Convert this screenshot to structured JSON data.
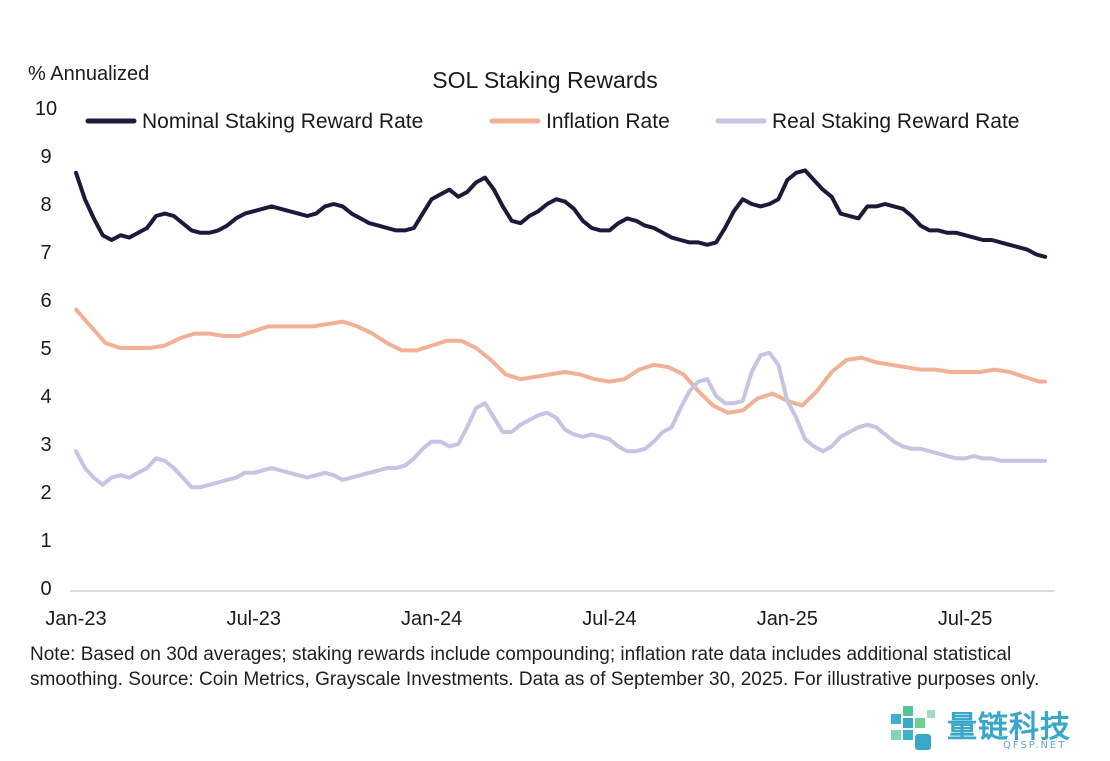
{
  "chart_data": {
    "type": "line",
    "title": "SOL Staking Rewards",
    "ylabel": "% Annualized",
    "xlabel": "",
    "ylim": [
      0,
      10
    ],
    "yticks": [
      "0",
      "1",
      "2",
      "3",
      "4",
      "5",
      "6",
      "7",
      "8",
      "9",
      "10"
    ],
    "xticks": [
      {
        "label": "Jan-23",
        "m": 0
      },
      {
        "label": "Jul-23",
        "m": 6
      },
      {
        "label": "Jan-24",
        "m": 12
      },
      {
        "label": "Jul-24",
        "m": 18
      },
      {
        "label": "Jan-25",
        "m": 24
      },
      {
        "label": "Jul-25",
        "m": 30
      }
    ],
    "x_range_months": [
      0,
      33
    ],
    "grid": false,
    "legend": "top",
    "series": [
      {
        "name": "Nominal Staking Reward Rate",
        "color": "#1b1a3b",
        "points": [
          [
            0.0,
            8.65
          ],
          [
            0.3,
            8.1
          ],
          [
            0.6,
            7.7
          ],
          [
            0.9,
            7.35
          ],
          [
            1.2,
            7.25
          ],
          [
            1.5,
            7.35
          ],
          [
            1.8,
            7.3
          ],
          [
            2.1,
            7.4
          ],
          [
            2.4,
            7.5
          ],
          [
            2.7,
            7.75
          ],
          [
            3.0,
            7.8
          ],
          [
            3.3,
            7.75
          ],
          [
            3.6,
            7.6
          ],
          [
            3.9,
            7.45
          ],
          [
            4.2,
            7.4
          ],
          [
            4.5,
            7.4
          ],
          [
            4.8,
            7.45
          ],
          [
            5.1,
            7.55
          ],
          [
            5.4,
            7.7
          ],
          [
            5.7,
            7.8
          ],
          [
            6.0,
            7.85
          ],
          [
            6.3,
            7.9
          ],
          [
            6.6,
            7.95
          ],
          [
            6.9,
            7.9
          ],
          [
            7.2,
            7.85
          ],
          [
            7.5,
            7.8
          ],
          [
            7.8,
            7.75
          ],
          [
            8.1,
            7.8
          ],
          [
            8.4,
            7.95
          ],
          [
            8.7,
            8.0
          ],
          [
            9.0,
            7.95
          ],
          [
            9.3,
            7.8
          ],
          [
            9.6,
            7.7
          ],
          [
            9.9,
            7.6
          ],
          [
            10.2,
            7.55
          ],
          [
            10.5,
            7.5
          ],
          [
            10.8,
            7.45
          ],
          [
            11.1,
            7.45
          ],
          [
            11.4,
            7.5
          ],
          [
            11.7,
            7.8
          ],
          [
            12.0,
            8.1
          ],
          [
            12.3,
            8.2
          ],
          [
            12.6,
            8.3
          ],
          [
            12.9,
            8.15
          ],
          [
            13.2,
            8.25
          ],
          [
            13.5,
            8.45
          ],
          [
            13.8,
            8.55
          ],
          [
            14.1,
            8.3
          ],
          [
            14.4,
            7.95
          ],
          [
            14.7,
            7.65
          ],
          [
            15.0,
            7.6
          ],
          [
            15.3,
            7.75
          ],
          [
            15.6,
            7.85
          ],
          [
            15.9,
            8.0
          ],
          [
            16.2,
            8.1
          ],
          [
            16.5,
            8.05
          ],
          [
            16.8,
            7.9
          ],
          [
            17.1,
            7.65
          ],
          [
            17.4,
            7.5
          ],
          [
            17.7,
            7.45
          ],
          [
            18.0,
            7.45
          ],
          [
            18.3,
            7.6
          ],
          [
            18.6,
            7.7
          ],
          [
            18.9,
            7.65
          ],
          [
            19.2,
            7.55
          ],
          [
            19.5,
            7.5
          ],
          [
            19.8,
            7.4
          ],
          [
            20.1,
            7.3
          ],
          [
            20.4,
            7.25
          ],
          [
            20.7,
            7.2
          ],
          [
            21.0,
            7.2
          ],
          [
            21.3,
            7.15
          ],
          [
            21.6,
            7.2
          ],
          [
            21.9,
            7.5
          ],
          [
            22.2,
            7.85
          ],
          [
            22.5,
            8.1
          ],
          [
            22.8,
            8.0
          ],
          [
            23.1,
            7.95
          ],
          [
            23.4,
            8.0
          ],
          [
            23.7,
            8.1
          ],
          [
            24.0,
            8.5
          ],
          [
            24.3,
            8.65
          ],
          [
            24.6,
            8.7
          ],
          [
            24.9,
            8.5
          ],
          [
            25.2,
            8.3
          ],
          [
            25.5,
            8.15
          ],
          [
            25.8,
            7.8
          ],
          [
            26.1,
            7.75
          ],
          [
            26.4,
            7.7
          ],
          [
            26.7,
            7.95
          ],
          [
            27.0,
            7.95
          ],
          [
            27.3,
            8.0
          ],
          [
            27.6,
            7.95
          ],
          [
            27.9,
            7.9
          ],
          [
            28.2,
            7.75
          ],
          [
            28.5,
            7.55
          ],
          [
            28.8,
            7.45
          ],
          [
            29.1,
            7.45
          ],
          [
            29.4,
            7.4
          ],
          [
            29.7,
            7.4
          ],
          [
            30.0,
            7.35
          ],
          [
            30.3,
            7.3
          ],
          [
            30.6,
            7.25
          ],
          [
            30.9,
            7.25
          ],
          [
            31.2,
            7.2
          ],
          [
            31.5,
            7.15
          ],
          [
            31.8,
            7.1
          ],
          [
            32.1,
            7.05
          ],
          [
            32.4,
            6.95
          ],
          [
            32.7,
            6.9
          ]
        ]
      },
      {
        "name": "Inflation Rate",
        "color": "#f0b196",
        "points": [
          [
            0.0,
            5.8
          ],
          [
            0.5,
            5.45
          ],
          [
            1.0,
            5.1
          ],
          [
            1.5,
            5.0
          ],
          [
            2.0,
            5.0
          ],
          [
            2.5,
            5.0
          ],
          [
            3.0,
            5.05
          ],
          [
            3.5,
            5.2
          ],
          [
            4.0,
            5.3
          ],
          [
            4.5,
            5.3
          ],
          [
            5.0,
            5.25
          ],
          [
            5.5,
            5.25
          ],
          [
            6.0,
            5.35
          ],
          [
            6.5,
            5.45
          ],
          [
            7.0,
            5.45
          ],
          [
            7.5,
            5.45
          ],
          [
            8.0,
            5.45
          ],
          [
            8.5,
            5.5
          ],
          [
            9.0,
            5.55
          ],
          [
            9.5,
            5.45
          ],
          [
            10.0,
            5.3
          ],
          [
            10.5,
            5.1
          ],
          [
            11.0,
            4.95
          ],
          [
            11.5,
            4.95
          ],
          [
            12.0,
            5.05
          ],
          [
            12.5,
            5.15
          ],
          [
            13.0,
            5.15
          ],
          [
            13.5,
            5.0
          ],
          [
            14.0,
            4.75
          ],
          [
            14.5,
            4.45
          ],
          [
            15.0,
            4.35
          ],
          [
            15.5,
            4.4
          ],
          [
            16.0,
            4.45
          ],
          [
            16.5,
            4.5
          ],
          [
            17.0,
            4.45
          ],
          [
            17.5,
            4.35
          ],
          [
            18.0,
            4.3
          ],
          [
            18.5,
            4.35
          ],
          [
            19.0,
            4.55
          ],
          [
            19.5,
            4.65
          ],
          [
            20.0,
            4.6
          ],
          [
            20.5,
            4.45
          ],
          [
            21.0,
            4.1
          ],
          [
            21.5,
            3.8
          ],
          [
            22.0,
            3.65
          ],
          [
            22.5,
            3.7
          ],
          [
            23.0,
            3.95
          ],
          [
            23.5,
            4.05
          ],
          [
            24.0,
            3.9
          ],
          [
            24.5,
            3.8
          ],
          [
            25.0,
            4.1
          ],
          [
            25.5,
            4.5
          ],
          [
            26.0,
            4.75
          ],
          [
            26.5,
            4.8
          ],
          [
            27.0,
            4.7
          ],
          [
            27.5,
            4.65
          ],
          [
            28.0,
            4.6
          ],
          [
            28.5,
            4.55
          ],
          [
            29.0,
            4.55
          ],
          [
            29.5,
            4.5
          ],
          [
            30.0,
            4.5
          ],
          [
            30.5,
            4.5
          ],
          [
            31.0,
            4.55
          ],
          [
            31.5,
            4.5
          ],
          [
            32.0,
            4.4
          ],
          [
            32.5,
            4.3
          ],
          [
            32.7,
            4.3
          ]
        ]
      },
      {
        "name": "Real Staking Reward Rate",
        "color": "#c6c4e3",
        "points": [
          [
            0.0,
            2.85
          ],
          [
            0.3,
            2.5
          ],
          [
            0.6,
            2.3
          ],
          [
            0.9,
            2.15
          ],
          [
            1.2,
            2.3
          ],
          [
            1.5,
            2.35
          ],
          [
            1.8,
            2.3
          ],
          [
            2.1,
            2.4
          ],
          [
            2.4,
            2.5
          ],
          [
            2.7,
            2.7
          ],
          [
            3.0,
            2.65
          ],
          [
            3.3,
            2.5
          ],
          [
            3.6,
            2.3
          ],
          [
            3.9,
            2.1
          ],
          [
            4.2,
            2.1
          ],
          [
            4.5,
            2.15
          ],
          [
            4.8,
            2.2
          ],
          [
            5.1,
            2.25
          ],
          [
            5.4,
            2.3
          ],
          [
            5.7,
            2.4
          ],
          [
            6.0,
            2.4
          ],
          [
            6.3,
            2.45
          ],
          [
            6.6,
            2.5
          ],
          [
            6.9,
            2.45
          ],
          [
            7.2,
            2.4
          ],
          [
            7.5,
            2.35
          ],
          [
            7.8,
            2.3
          ],
          [
            8.1,
            2.35
          ],
          [
            8.4,
            2.4
          ],
          [
            8.7,
            2.35
          ],
          [
            9.0,
            2.25
          ],
          [
            9.3,
            2.3
          ],
          [
            9.6,
            2.35
          ],
          [
            9.9,
            2.4
          ],
          [
            10.2,
            2.45
          ],
          [
            10.5,
            2.5
          ],
          [
            10.8,
            2.5
          ],
          [
            11.1,
            2.55
          ],
          [
            11.4,
            2.7
          ],
          [
            11.7,
            2.9
          ],
          [
            12.0,
            3.05
          ],
          [
            12.3,
            3.05
          ],
          [
            12.6,
            2.95
          ],
          [
            12.9,
            3.0
          ],
          [
            13.2,
            3.35
          ],
          [
            13.5,
            3.75
          ],
          [
            13.8,
            3.85
          ],
          [
            14.1,
            3.55
          ],
          [
            14.4,
            3.25
          ],
          [
            14.7,
            3.25
          ],
          [
            15.0,
            3.4
          ],
          [
            15.3,
            3.5
          ],
          [
            15.6,
            3.6
          ],
          [
            15.9,
            3.65
          ],
          [
            16.2,
            3.55
          ],
          [
            16.5,
            3.3
          ],
          [
            16.8,
            3.2
          ],
          [
            17.1,
            3.15
          ],
          [
            17.4,
            3.2
          ],
          [
            17.7,
            3.15
          ],
          [
            18.0,
            3.1
          ],
          [
            18.3,
            2.95
          ],
          [
            18.6,
            2.85
          ],
          [
            18.9,
            2.85
          ],
          [
            19.2,
            2.9
          ],
          [
            19.5,
            3.05
          ],
          [
            19.8,
            3.25
          ],
          [
            20.1,
            3.35
          ],
          [
            20.4,
            3.75
          ],
          [
            20.7,
            4.1
          ],
          [
            21.0,
            4.3
          ],
          [
            21.3,
            4.35
          ],
          [
            21.6,
            4.0
          ],
          [
            21.9,
            3.85
          ],
          [
            22.2,
            3.85
          ],
          [
            22.5,
            3.9
          ],
          [
            22.8,
            4.5
          ],
          [
            23.1,
            4.85
          ],
          [
            23.4,
            4.9
          ],
          [
            23.7,
            4.65
          ],
          [
            24.0,
            3.9
          ],
          [
            24.3,
            3.55
          ],
          [
            24.6,
            3.1
          ],
          [
            24.9,
            2.95
          ],
          [
            25.2,
            2.85
          ],
          [
            25.5,
            2.95
          ],
          [
            25.8,
            3.15
          ],
          [
            26.1,
            3.25
          ],
          [
            26.4,
            3.35
          ],
          [
            26.7,
            3.4
          ],
          [
            27.0,
            3.35
          ],
          [
            27.3,
            3.2
          ],
          [
            27.6,
            3.05
          ],
          [
            27.9,
            2.95
          ],
          [
            28.2,
            2.9
          ],
          [
            28.5,
            2.9
          ],
          [
            28.8,
            2.85
          ],
          [
            29.1,
            2.8
          ],
          [
            29.4,
            2.75
          ],
          [
            29.7,
            2.7
          ],
          [
            30.0,
            2.7
          ],
          [
            30.3,
            2.75
          ],
          [
            30.6,
            2.7
          ],
          [
            30.9,
            2.7
          ],
          [
            31.2,
            2.65
          ],
          [
            31.5,
            2.65
          ],
          [
            31.8,
            2.65
          ],
          [
            32.1,
            2.65
          ],
          [
            32.4,
            2.65
          ],
          [
            32.7,
            2.65
          ]
        ]
      }
    ]
  },
  "note": "Note: Based on 30d averages; staking rewards include compounding; inflation rate data includes additional statistical smoothing. Source: Coin Metrics, Grayscale Investments. Data as of September 30, 2025. For illustrative purposes only.",
  "watermark": {
    "text": "量链科技",
    "sub": "QFSP.NET"
  }
}
